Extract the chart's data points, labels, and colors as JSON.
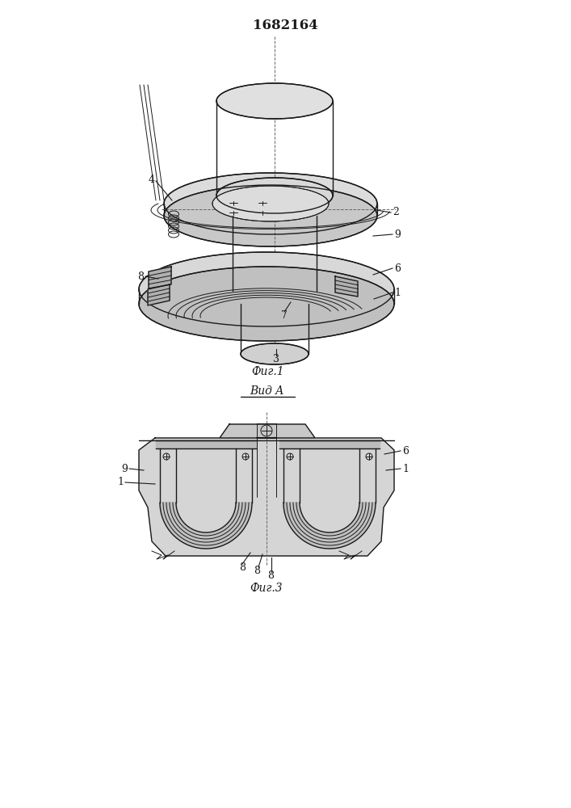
{
  "title": "1682164",
  "title_fontsize": 12,
  "fig_width": 7.07,
  "fig_height": 10.0,
  "background_color": "#ffffff",
  "line_color": "#1a1a1a",
  "fig1_label": "Фиг.1",
  "fig3_label": "Фиг.3",
  "vidA_label": "Вид A"
}
